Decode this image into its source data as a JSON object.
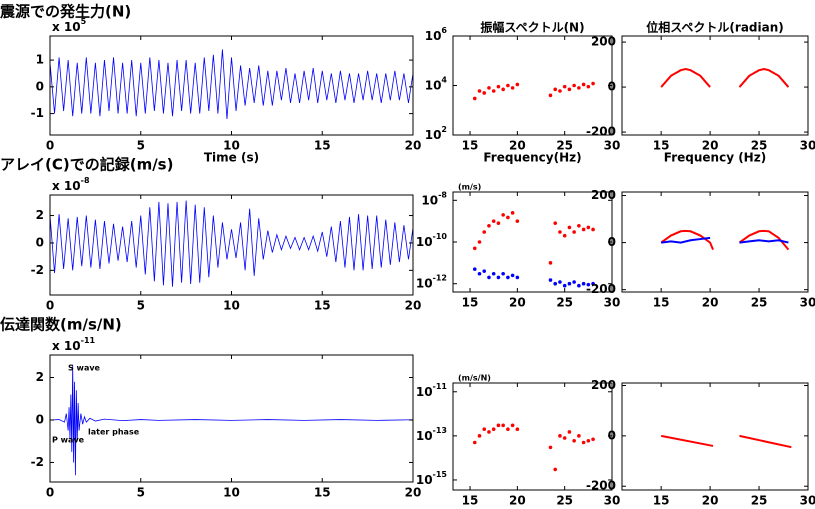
{
  "chart_data": [
    {
      "type": "line",
      "title": "震源での発生力(N)",
      "xlabel": "Time (s)",
      "scale_label": "x 10",
      "scale_exponent": "5",
      "xlim": [
        0,
        20
      ],
      "ylim": [
        -1.8,
        1.9
      ],
      "xticks": [
        0,
        5,
        10,
        15,
        20
      ],
      "yticks": [
        1,
        0,
        -1
      ],
      "series": [
        {
          "color": "#0000ff",
          "x": [
            0,
            0.25,
            0.5,
            0.75,
            1,
            1.25,
            1.5,
            1.75,
            2,
            2.25,
            2.5,
            2.75,
            3,
            3.25,
            3.5,
            3.75,
            4,
            4.25,
            4.5,
            4.75,
            5,
            5.25,
            5.5,
            5.75,
            6,
            6.25,
            6.5,
            6.75,
            7,
            7.25,
            7.5,
            7.75,
            8,
            8.25,
            8.5,
            8.75,
            9,
            9.25,
            9.5,
            9.75,
            10,
            10.25,
            10.5,
            10.75,
            11,
            11.25,
            11.5,
            11.75,
            12,
            12.25,
            12.5,
            12.75,
            13,
            13.25,
            13.5,
            13.75,
            14,
            14.25,
            14.5,
            14.75,
            15,
            15.25,
            15.5,
            15.75,
            16,
            16.25,
            16.5,
            16.75,
            17,
            17.25,
            17.5,
            17.75,
            18,
            18.25,
            18.5,
            18.75,
            19,
            19.25,
            19.5,
            19.75,
            20
          ],
          "values": [
            0.9,
            -1.0,
            1.1,
            -0.9,
            1.0,
            -1.1,
            0.9,
            -1.0,
            1.1,
            -1.0,
            0.9,
            -1.1,
            1.0,
            -0.9,
            1.1,
            -1.0,
            0.9,
            -1.0,
            1.0,
            -1.1,
            0.9,
            -1.0,
            1.1,
            -0.9,
            1.0,
            -1.0,
            0.9,
            -1.1,
            1.0,
            -0.9,
            1.0,
            -1.0,
            0.9,
            -1.0,
            1.1,
            -0.9,
            1.2,
            -1.0,
            1.4,
            -1.2,
            1.1,
            -0.9,
            0.8,
            -0.7,
            0.7,
            -0.6,
            0.8,
            -0.7,
            0.6,
            -0.7,
            0.6,
            -0.5,
            0.7,
            -0.6,
            0.5,
            -0.6,
            0.6,
            -0.5,
            0.7,
            -0.6,
            0.6,
            -0.5,
            0.5,
            -0.6,
            0.6,
            -0.5,
            0.5,
            -0.6,
            0.5,
            -0.5,
            0.6,
            -0.5,
            0.5,
            -0.6,
            0.5,
            -0.5,
            0.6,
            -0.5,
            0.5,
            -0.6,
            0.5
          ]
        }
      ]
    },
    {
      "type": "scatter",
      "title": "振幅スペクトル(N)",
      "xlabel": "Frequency(Hz)",
      "log": true,
      "xlim": [
        13.2,
        30
      ],
      "ylim": [
        100,
        1000000
      ],
      "xticks": [
        15,
        20,
        25,
        30
      ],
      "yticks": [
        {
          "value": 100,
          "label": "10",
          "exp": "2"
        },
        {
          "value": 10000,
          "label": "10",
          "exp": "4"
        },
        {
          "value": 1000000,
          "label": "10",
          "exp": "6"
        }
      ],
      "series": [
        {
          "color": "#ff0000",
          "x": [
            15.5,
            16,
            16.5,
            17,
            17.5,
            18,
            18.5,
            19,
            19.5,
            20,
            23.5,
            24,
            24.5,
            25,
            25.5,
            26,
            26.5,
            27,
            27.5,
            28
          ],
          "values": [
            3000,
            6000,
            5000,
            8000,
            6000,
            9000,
            7000,
            10000,
            8000,
            11000,
            4000,
            7000,
            6000,
            9000,
            7000,
            10000,
            8000,
            11000,
            9000,
            12000
          ]
        }
      ]
    },
    {
      "type": "line",
      "title": "位相スペクトル(radian)",
      "xlabel": "Frequency (Hz)",
      "xlim": [
        11,
        30
      ],
      "ylim": [
        -213,
        227
      ],
      "xticks": [
        15,
        20,
        25,
        30
      ],
      "yticks": [
        200,
        0,
        -200
      ],
      "series": [
        {
          "color": "#ff0000",
          "x": [
            15,
            16,
            17,
            17.5,
            18,
            19,
            20,
            21.5,
            23,
            24,
            25,
            25.5,
            26,
            27,
            28
          ],
          "values": [
            0,
            50,
            75,
            80,
            75,
            50,
            0,
            null,
            0,
            50,
            75,
            80,
            75,
            50,
            0
          ]
        }
      ]
    },
    {
      "type": "line",
      "title": "アレイ(C)での記録(m/s)",
      "scale_label": "x 10",
      "scale_exponent": "-8",
      "xlim": [
        0,
        20
      ],
      "ylim": [
        -3.8,
        3.5
      ],
      "xticks": [
        0,
        5,
        10,
        15,
        20
      ],
      "yticks": [
        2,
        0,
        -2
      ],
      "series": [
        {
          "color": "#0000ff",
          "x": [
            0,
            0.25,
            0.5,
            0.75,
            1,
            1.25,
            1.5,
            1.75,
            2,
            2.25,
            2.5,
            2.75,
            3,
            3.25,
            3.5,
            3.75,
            4,
            4.25,
            4.5,
            4.75,
            5,
            5.25,
            5.5,
            5.75,
            6,
            6.25,
            6.5,
            6.75,
            7,
            7.25,
            7.5,
            7.75,
            8,
            8.25,
            8.5,
            8.75,
            9,
            9.25,
            9.5,
            9.75,
            10,
            10.25,
            10.5,
            10.75,
            11,
            11.25,
            11.5,
            11.75,
            12,
            12.25,
            12.5,
            12.75,
            13,
            13.25,
            13.5,
            13.75,
            14,
            14.25,
            14.5,
            14.75,
            15,
            15.25,
            15.5,
            15.75,
            16,
            16.25,
            16.5,
            16.75,
            17,
            17.25,
            17.5,
            17.75,
            18,
            18.25,
            18.5,
            18.75,
            19,
            19.25,
            19.5,
            19.75,
            20
          ],
          "values": [
            2.0,
            -2.2,
            2.1,
            -1.9,
            1.8,
            -2.0,
            1.9,
            -1.7,
            2.0,
            -1.8,
            1.7,
            -1.9,
            1.6,
            -1.5,
            1.4,
            -1.3,
            1.2,
            -1.4,
            1.6,
            -1.8,
            2.0,
            -2.3,
            2.6,
            -2.8,
            3.0,
            -3.1,
            2.9,
            -3.2,
            3.0,
            -2.9,
            3.1,
            -3.0,
            2.8,
            -2.9,
            2.6,
            -2.5,
            2.0,
            -1.8,
            1.5,
            -1.2,
            1.0,
            -1.1,
            1.5,
            -2.0,
            2.5,
            -2.4,
            1.8,
            -1.2,
            0.9,
            -0.7,
            0.6,
            -0.5,
            0.5,
            -0.4,
            0.4,
            -0.5,
            0.4,
            -0.5,
            0.5,
            -0.6,
            0.8,
            -1.0,
            1.2,
            -1.4,
            1.6,
            -1.8,
            1.9,
            -2.0,
            2.1,
            -2.0,
            2.0,
            -1.9,
            2.0,
            -1.8,
            1.7,
            -1.6,
            1.5,
            -1.4,
            1.3,
            -1.2,
            1.1
          ]
        }
      ]
    },
    {
      "type": "scatter",
      "unit_label": "(m/s)",
      "log": true,
      "xlim": [
        13.2,
        30
      ],
      "ylim": [
        4e-13,
        2.5e-08
      ],
      "xticks": [
        15,
        20,
        25,
        30
      ],
      "yticks": [
        {
          "value": 1e-12,
          "label": "10",
          "exp": "-12"
        },
        {
          "value": 1e-10,
          "label": "10",
          "exp": "-10"
        },
        {
          "value": 1e-08,
          "label": "10",
          "exp": "-8"
        }
      ],
      "series": [
        {
          "color": "#ff0000",
          "x": [
            15.5,
            16,
            16.5,
            17,
            17.5,
            18,
            18.5,
            19,
            19.5,
            20,
            23.5,
            24,
            24.5,
            25,
            25.5,
            26,
            26.5,
            27,
            27.5,
            28
          ],
          "values": [
            5e-11,
            1e-10,
            3e-10,
            6e-10,
            1e-09,
            8e-10,
            2e-09,
            1.5e-09,
            2.5e-09,
            1e-09,
            1e-11,
            8e-10,
            3e-10,
            2e-10,
            5e-10,
            3e-10,
            6e-10,
            4e-10,
            5e-10,
            4e-10
          ]
        },
        {
          "color": "#0000ff",
          "x": [
            15.5,
            16,
            16.5,
            17,
            17.5,
            18,
            18.5,
            19,
            19.5,
            20,
            23.5,
            24,
            24.5,
            25,
            25.5,
            26,
            26.5,
            27,
            27.5,
            28
          ],
          "values": [
            5e-12,
            3e-12,
            4e-12,
            2e-12,
            3e-12,
            2e-12,
            3e-12,
            2e-12,
            2.5e-12,
            2e-12,
            1.5e-12,
            1e-12,
            1.2e-12,
            8e-13,
            1e-12,
            1.2e-12,
            8e-13,
            1e-12,
            9e-13,
            1e-12
          ]
        }
      ]
    },
    {
      "type": "line",
      "xlim": [
        11,
        30
      ],
      "ylim": [
        -210,
        215
      ],
      "xticks": [
        15,
        20,
        25,
        30
      ],
      "yticks": [
        200,
        0,
        -200
      ],
      "series": [
        {
          "color": "#ff0000",
          "x": [
            15,
            16,
            17,
            17.5,
            18,
            19,
            20,
            20.3,
            21.6,
            23,
            24,
            25,
            25.5,
            26,
            27,
            28
          ],
          "values": [
            0,
            30,
            48,
            50,
            48,
            30,
            0,
            -30,
            null,
            0,
            30,
            48,
            50,
            48,
            20,
            -30
          ]
        },
        {
          "color": "#0000ff",
          "x": [
            15,
            16,
            17,
            18,
            19,
            20,
            21.6,
            23,
            24,
            25,
            26,
            27,
            28
          ],
          "values": [
            0,
            5,
            0,
            10,
            15,
            20,
            null,
            0,
            5,
            10,
            5,
            10,
            0
          ]
        }
      ]
    },
    {
      "type": "line",
      "title": "伝達関数(m/s/N)",
      "scale_label": "x 10",
      "scale_exponent": "-11",
      "annotations": [
        "S wave",
        "P wave",
        "later phase"
      ],
      "xlim": [
        0,
        20
      ],
      "ylim": [
        -2.92,
        3.06
      ],
      "xticks": [
        0,
        5,
        10,
        15,
        20
      ],
      "yticks": [
        2,
        0,
        -2
      ],
      "series": [
        {
          "color": "#0000ff",
          "x": [
            0,
            0.5,
            0.8,
            0.9,
            1.0,
            1.05,
            1.1,
            1.15,
            1.2,
            1.25,
            1.3,
            1.35,
            1.4,
            1.45,
            1.5,
            1.55,
            1.6,
            1.7,
            1.8,
            1.9,
            2.0,
            2.2,
            2.5,
            3,
            4,
            5,
            6,
            8,
            10,
            12,
            14,
            16,
            18,
            20
          ],
          "values": [
            0,
            0.02,
            -0.1,
            0.3,
            -0.5,
            0.6,
            -0.9,
            1.2,
            -1.5,
            2.6,
            -2.0,
            1.8,
            -2.6,
            1.4,
            -1.0,
            0.8,
            -0.5,
            0.3,
            -0.2,
            0.15,
            -0.1,
            0.08,
            -0.05,
            0.04,
            -0.03,
            0.02,
            -0.02,
            0.02,
            -0.02,
            0.02,
            -0.02,
            0.02,
            -0.02,
            0.01
          ]
        }
      ]
    },
    {
      "type": "scatter",
      "unit_label": "(m/s/N)",
      "log": true,
      "xlim": [
        13.2,
        30
      ],
      "ylim": [
        3.5e-16,
        2.5e-11
      ],
      "xticks": [
        15,
        20,
        25,
        30
      ],
      "yticks": [
        {
          "value": 1e-15,
          "label": "10",
          "exp": "-15"
        },
        {
          "value": 1e-13,
          "label": "10",
          "exp": "-13"
        },
        {
          "value": 1e-11,
          "label": "10",
          "exp": "-11"
        }
      ],
      "series": [
        {
          "color": "#ff0000",
          "x": [
            15.5,
            16,
            16.5,
            17,
            17.5,
            18,
            18.5,
            19,
            19.5,
            20,
            23.5,
            24,
            24.5,
            25,
            25.5,
            26,
            26.5,
            27,
            27.5,
            28
          ],
          "values": [
            5e-14,
            1e-13,
            2e-13,
            1.5e-13,
            2e-13,
            3e-13,
            3e-13,
            2e-13,
            3e-13,
            2e-13,
            3e-14,
            3e-15,
            1e-13,
            8e-14,
            1.5e-13,
            6e-14,
            1e-13,
            5e-14,
            6e-14,
            7e-14
          ]
        }
      ]
    },
    {
      "type": "line",
      "xlim": [
        11,
        30
      ],
      "ylim": [
        -215,
        210
      ],
      "xticks": [
        15,
        20,
        25,
        30
      ],
      "yticks": [
        200,
        0,
        -200
      ],
      "series": [
        {
          "color": "#ff0000",
          "x": [
            15,
            20.3,
            21.6,
            23,
            28.3
          ],
          "values": [
            0,
            -40,
            null,
            0,
            -45
          ]
        }
      ]
    }
  ]
}
